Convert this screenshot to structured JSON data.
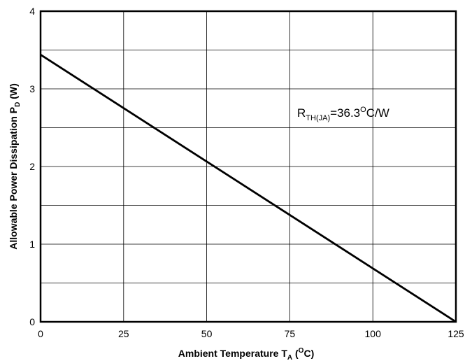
{
  "chart_data": {
    "type": "line",
    "xlabel_main": "Ambient  Temperature  T",
    "xlabel_sub": "A",
    "xlabel_open": " (",
    "xlabel_sup": "O",
    "xlabel_unit": "C)",
    "ylabel_main": "Allowable  Power Dissipation  P",
    "ylabel_sub": "D",
    "ylabel_unit": " (W)",
    "xlim": [
      0,
      125
    ],
    "ylim": [
      0,
      4
    ],
    "xticks": [
      "0",
      "25",
      "50",
      "75",
      "100",
      "125"
    ],
    "yticks": [
      "0",
      "1",
      "2",
      "3",
      "4"
    ],
    "grid": true,
    "series": [
      {
        "x": [
          0,
          125
        ],
        "y": [
          3.44,
          0
        ]
      }
    ],
    "annotation": {
      "main": "R",
      "sub": "TH(JA)",
      "value": "=36.3",
      "sup": "O",
      "unit": "C/W"
    }
  }
}
